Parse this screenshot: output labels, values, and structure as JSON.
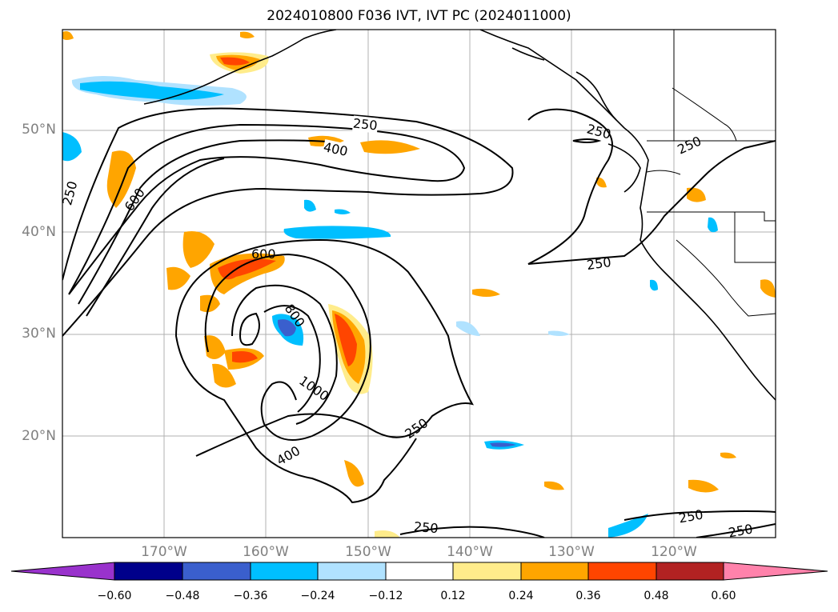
{
  "title": "2024010800 F036 IVT, IVT PC (2024011000)",
  "lat_labels": [
    "50°N",
    "40°N",
    "30°N",
    "20°N"
  ],
  "lon_labels": [
    "170°W",
    "160°W",
    "150°W",
    "140°W",
    "130°W",
    "120°W"
  ],
  "contour_labels": [
    "250",
    "400",
    "600",
    "800",
    "1000"
  ],
  "colorbar": {
    "ticks": [
      "−0.60",
      "−0.48",
      "−0.36",
      "−0.24",
      "−0.12",
      "0.12",
      "0.24",
      "0.36",
      "0.48",
      "0.60"
    ],
    "colors": [
      "#9932cc",
      "#00008b",
      "#3a5fcd",
      "#00bfff",
      "#b0e2ff",
      "#ffffff",
      "#ffec8b",
      "#ffa500",
      "#ff4500",
      "#b22222",
      "#ff82ab"
    ]
  },
  "colors": {
    "coast": "#000000",
    "grid": "#b0b0b0",
    "contour": "#000000"
  }
}
